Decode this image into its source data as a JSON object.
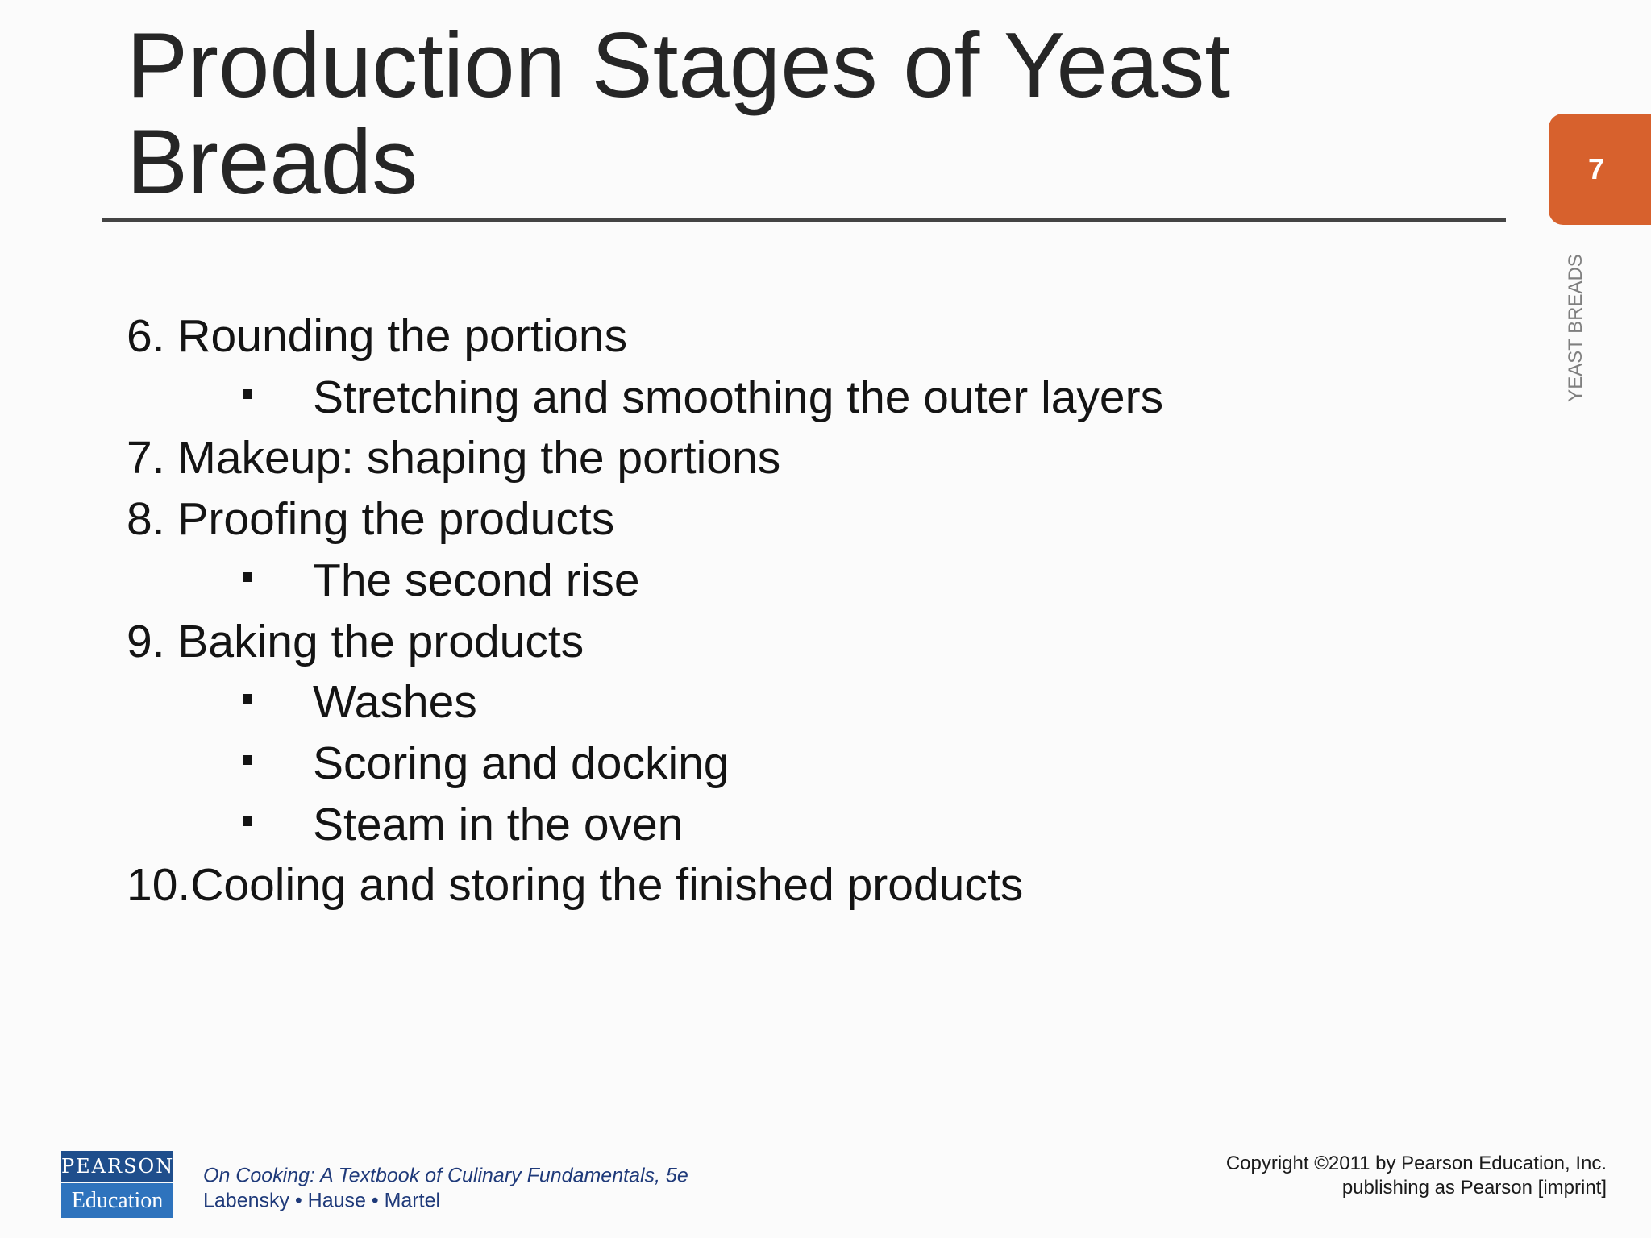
{
  "slide": {
    "title": "Production Stages of Yeast Breads",
    "page_number": "7",
    "section_label": "YEAST BREADS",
    "items": [
      {
        "text": "6. Rounding the portions",
        "bullets": [
          "Stretching and smoothing the outer layers"
        ]
      },
      {
        "text": "7. Makeup: shaping the portions",
        "bullets": []
      },
      {
        "text": "8. Proofing the products",
        "bullets": [
          "The second rise"
        ]
      },
      {
        "text": "9. Baking the products",
        "bullets": [
          "Washes",
          "Scoring and docking",
          "Steam in the oven"
        ]
      },
      {
        "text": "10.Cooling and storing the finished products",
        "bullets": []
      }
    ],
    "footer": {
      "logo_top": "PEARSON",
      "logo_bottom": "Education",
      "book_title": "On Cooking: A Textbook of Culinary Fundamentals, 5e",
      "authors": "Labensky • Hause • Martel",
      "copyright": [
        "Copyright ©2011 by Pearson Education, Inc.",
        "publishing as Pearson [imprint]"
      ]
    }
  }
}
